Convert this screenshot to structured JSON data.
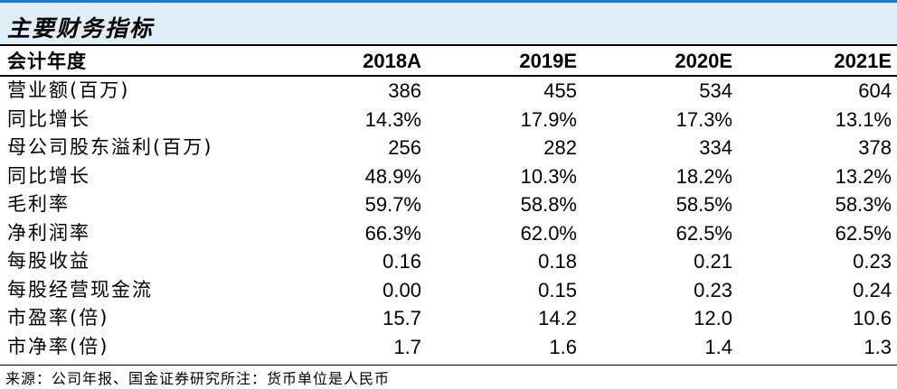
{
  "title": "主要财务指标",
  "table": {
    "header": {
      "label": "会计年度",
      "years": [
        "2018A",
        "2019E",
        "2020E",
        "2021E"
      ]
    },
    "rows": [
      {
        "label": "营业额(百万)",
        "values": [
          "386",
          "455",
          "534",
          "604"
        ]
      },
      {
        "label": "同比增长",
        "values": [
          "14.3%",
          "17.9%",
          "17.3%",
          "13.1%"
        ]
      },
      {
        "label": "母公司股东溢利(百万)",
        "values": [
          "256",
          "282",
          "334",
          "378"
        ]
      },
      {
        "label": "同比增长",
        "values": [
          "48.9%",
          "10.3%",
          "18.2%",
          "13.2%"
        ]
      },
      {
        "label": "毛利率",
        "values": [
          "59.7%",
          "58.8%",
          "58.5%",
          "58.3%"
        ]
      },
      {
        "label": "净利润率",
        "values": [
          "66.3%",
          "62.0%",
          "62.5%",
          "62.5%"
        ]
      },
      {
        "label": "每股收益",
        "values": [
          "0.16",
          "0.18",
          "0.21",
          "0.23"
        ]
      },
      {
        "label": "每股经营现金流",
        "values": [
          "0.00",
          "0.15",
          "0.23",
          "0.24"
        ]
      },
      {
        "label": "市盈率(倍)",
        "values": [
          "15.7",
          "14.2",
          "12.0",
          "10.6"
        ]
      },
      {
        "label": "市净率(倍)",
        "values": [
          "1.7",
          "1.6",
          "1.4",
          "1.3"
        ]
      }
    ]
  },
  "footer": "来源：公司年报、国金证券研究所注：货币单位是人民币",
  "colors": {
    "accent_line": "#1f77c8",
    "title_background": "#dfeef7",
    "text": "#000000"
  }
}
